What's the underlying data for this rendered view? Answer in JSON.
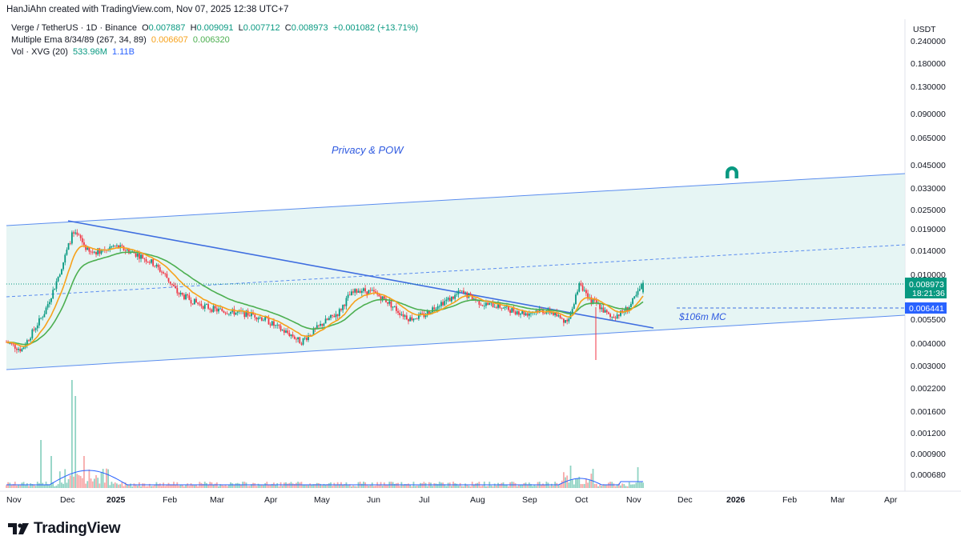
{
  "header": {
    "attribution": "HanJiAhn created with TradingView.com, Nov 07, 2025 12:38 UTC+7"
  },
  "legend": {
    "symbol": "Verge / TetherUS · 1D · Binance",
    "open_label": "O",
    "open": "0.007887",
    "high_label": "H",
    "high": "0.009091",
    "low_label": "L",
    "low": "0.007712",
    "close_label": "C",
    "close": "0.008973",
    "change": "+0.001082 (+13.71%)",
    "ema_label": "Multiple Ema 8/34/89 (267, 34, 89)",
    "ema_1": "0.006607",
    "ema_2": "0.006320",
    "vol_label": "Vol · XVG (20)",
    "vol_1": "533.96M",
    "vol_2": "1.11B"
  },
  "axis": {
    "currency": "USDT",
    "price_labels": [
      "0.240000",
      "0.180000",
      "0.130000",
      "0.090000",
      "0.065000",
      "0.045000",
      "0.033000",
      "0.025000",
      "0.019000",
      "0.014000",
      "0.010000",
      "0.005500",
      "0.004000",
      "0.003000",
      "0.002200",
      "0.001600",
      "0.001200",
      "0.000900",
      "0.000680"
    ],
    "last_price": "0.008973",
    "countdown": "18:21:36",
    "level_price": "0.006441",
    "date_labels": [
      "Nov",
      "Dec",
      "2025",
      "Feb",
      "Mar",
      "Apr",
      "May",
      "Jun",
      "Jul",
      "Aug",
      "Sep",
      "Oct",
      "Nov",
      "Dec",
      "2026",
      "Feb",
      "Mar",
      "Apr"
    ]
  },
  "annotations": {
    "theme": "Privacy & POW",
    "mc_label": "$106m MC"
  },
  "footer": {
    "brand": "TradingView"
  },
  "colors": {
    "up": "#089981",
    "down": "#f23645",
    "ema_fast": "#f7a21b",
    "ema_slow": "#4caf50",
    "channel": "#2962ff",
    "channel_fill": "#e0f2f1",
    "magnet": "#089981"
  },
  "chart_data": {
    "type": "candlestick",
    "symbol": "Verge / TetherUS",
    "interval": "1D",
    "exchange": "Binance",
    "ylim": [
      0.003,
      0.24
    ],
    "y_scale": "log",
    "volume_ylim_label": "Vol",
    "monthly_closes": [
      {
        "month": "Nov 2024",
        "close": 0.0045
      },
      {
        "month": "Dec 2024",
        "close": 0.0125
      },
      {
        "month": "Jan 2025",
        "close": 0.011
      },
      {
        "month": "Feb 2025",
        "close": 0.0062
      },
      {
        "month": "Mar 2025",
        "close": 0.0052
      },
      {
        "month": "Apr 2025",
        "close": 0.0048
      },
      {
        "month": "May 2025",
        "close": 0.007
      },
      {
        "month": "Jun 2025",
        "close": 0.006
      },
      {
        "month": "Jul 2025",
        "close": 0.0075
      },
      {
        "month": "Aug 2025",
        "close": 0.0061
      },
      {
        "month": "Sep 2025",
        "close": 0.0058
      },
      {
        "month": "Oct 2025",
        "close": 0.0062
      },
      {
        "month": "Nov 2025",
        "close": 0.008973
      }
    ],
    "last_ohlc": {
      "open": 0.007887,
      "high": 0.009091,
      "low": 0.007712,
      "close": 0.008973
    },
    "ema": {
      "fast": 0.006607,
      "slow": 0.00632
    },
    "horizontal_level": 0.006441,
    "volume_last": {
      "vol": "533.96M",
      "ma": "1.11B"
    }
  }
}
